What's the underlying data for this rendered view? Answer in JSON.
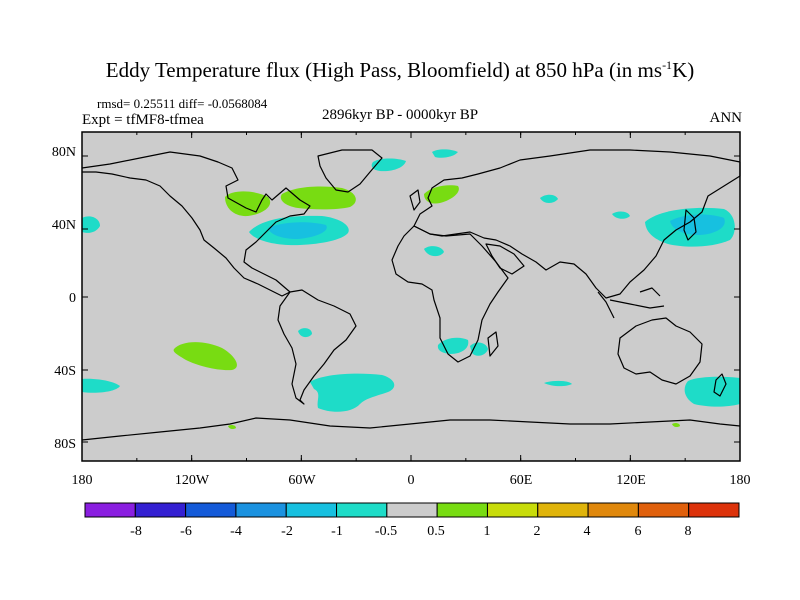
{
  "title": "Eddy Temperature flux (High Pass, Bloomfield) at 850 hPa (in ms",
  "title_sup": "-1",
  "title_end": "K)",
  "stats": "rmsd= 0.25511  diff= -0.0568084",
  "expt": "Expt = tfMF8-tfmea",
  "period": "2896kyr BP - 0000kyr BP",
  "season": "ANN",
  "axes": {
    "lon_ticks": [
      "180",
      "120W",
      "60W",
      "0",
      "60E",
      "120E",
      "180"
    ],
    "lat_ticks": [
      "80N",
      "40N",
      "0",
      "40S",
      "80S"
    ]
  },
  "colorbar": {
    "labels": [
      "-8",
      "-6",
      "-4",
      "-2",
      "-1",
      "-0.5",
      "0.5",
      "1",
      "2",
      "4",
      "6",
      "8"
    ],
    "colors": [
      "#8a1ee0",
      "#3420d2",
      "#145ad8",
      "#1b92e0",
      "#17c0e0",
      "#1edcc8",
      "#cccccc",
      "#78dc12",
      "#c8dc0a",
      "#e0b40a",
      "#e0880c",
      "#e0600c",
      "#dc320a"
    ]
  },
  "colors": {
    "background": "#cccccc",
    "land_outline": "#000000"
  }
}
